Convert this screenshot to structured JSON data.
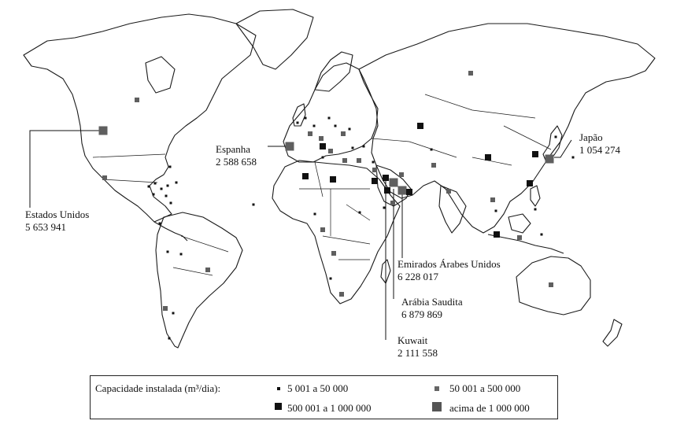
{
  "labels": {
    "usa": {
      "name": "Estados Unidos",
      "value": "5 653 941"
    },
    "spain": {
      "name": "Espanha",
      "value": "2 588 658"
    },
    "japan": {
      "name": "Japão",
      "value": "1 054 274"
    },
    "uae": {
      "name": "Emirados Árabes Unidos",
      "value": "6 228 017"
    },
    "saudi": {
      "name": "Arábia Saudita",
      "value": "6 879 869"
    },
    "kuwait": {
      "name": "Kuwait",
      "value": "2 111 558"
    }
  },
  "legend": {
    "title": "Capacidade instalada (m³/dia):",
    "items": [
      {
        "label": "5 001 a 50 000",
        "color": "#111111"
      },
      {
        "label": "50 001 a 500 000",
        "color": "#666666"
      },
      {
        "label": "500 001 a 1 000 000",
        "color": "#111111"
      },
      {
        "label": "acima de 1 000 000",
        "color": "#555555"
      }
    ]
  },
  "colors": {
    "outline": "#1a1a1a",
    "dark": "#111111",
    "gray": "#5f5f5f"
  }
}
